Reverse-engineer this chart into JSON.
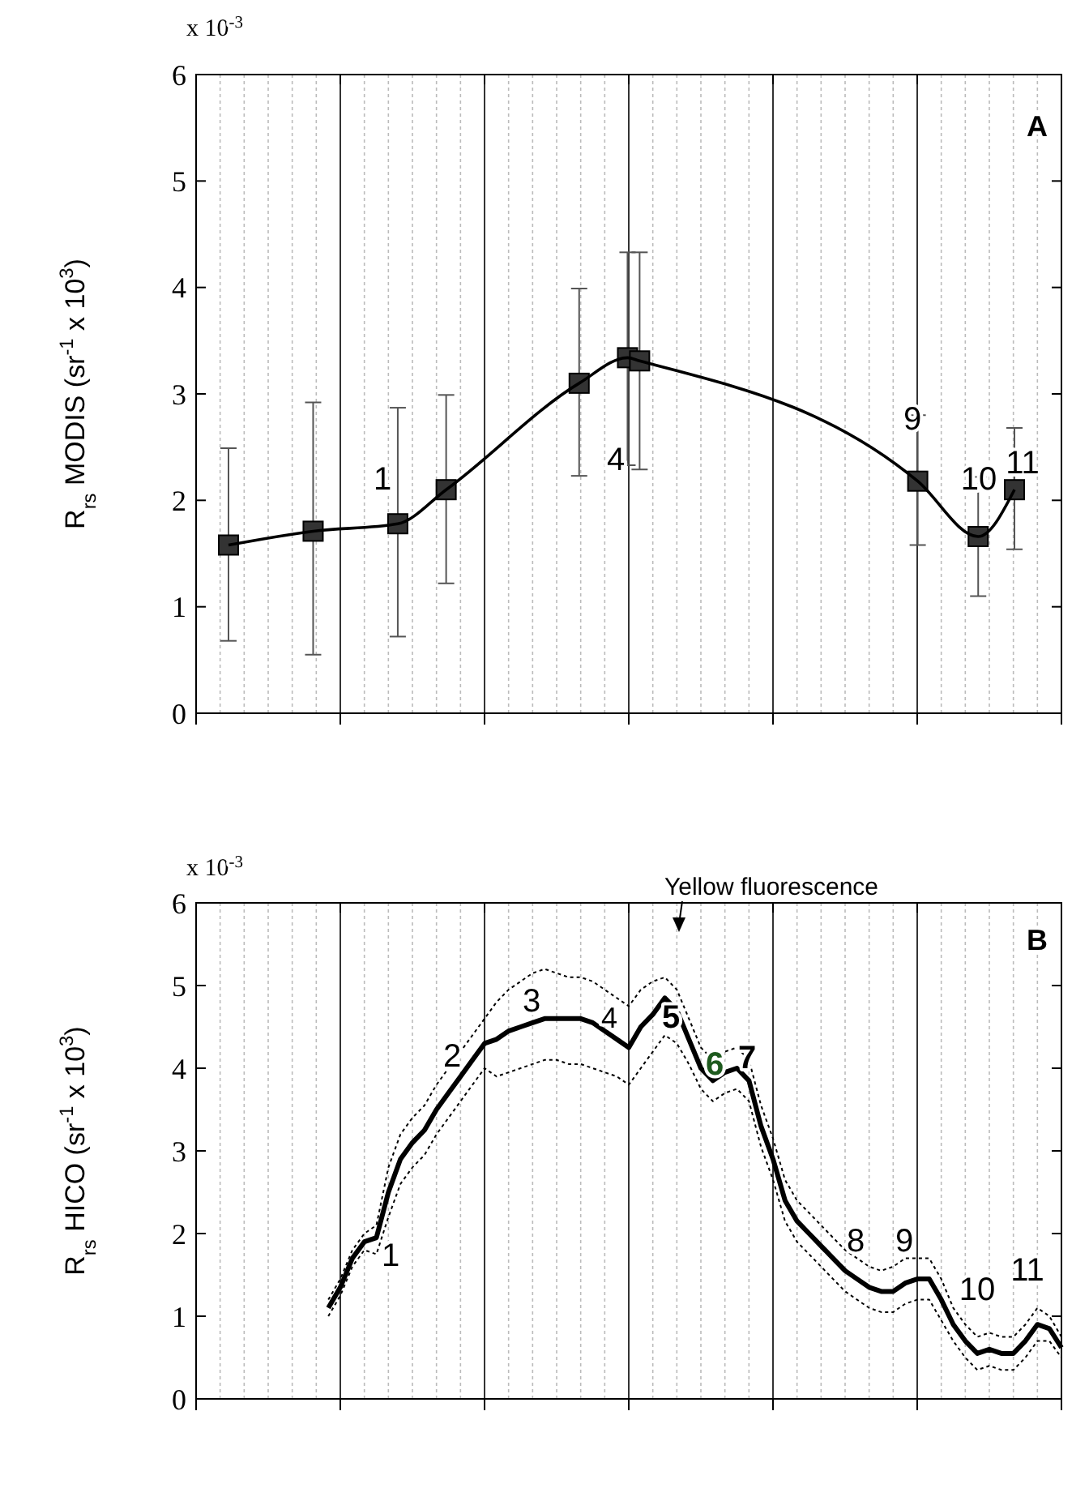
{
  "chart_data": [
    {
      "type": "line",
      "ylabel": "R$_{rs}$ MODIS (sr$^{-1}$ x 10$^{3}$)",
      "categories": [
        null,
        null,
        null,
        null,
        null,
        null,
        null,
        null,
        null,
        null,
        null,
        null,
        null,
        null,
        null,
        null,
        null,
        null,
        null,
        null,
        null,
        null,
        null,
        null,
        null,
        null,
        null,
        null,
        null,
        null,
        null,
        null,
        null,
        null,
        null,
        null,
        null,
        null,
        null,
        null,
        null,
        null,
        null,
        null,
        null,
        null,
        null,
        null,
        null,
        null,
        null,
        null,
        null,
        null,
        null,
        null,
        null,
        null,
        null,
        null,
        null,
        null,
        null,
        null,
        null,
        null,
        null,
        null,
        null,
        null,
        null,
        null,
        null,
        null,
        null,
        null,
        null,
        null,
        null,
        null,
        null,
        null,
        null,
        null,
        null,
        null,
        null,
        null,
        null,
        null,
        null,
        null,
        null,
        null,
        null,
        null,
        null,
        null,
        null,
        null,
        null,
        null,
        null,
        null,
        null,
        null,
        null,
        null,
        null,
        null,
        null,
        null,
        null,
        null,
        null,
        null,
        null,
        null,
        null,
        null,
        null,
        null,
        null,
        null,
        null,
        null,
        null,
        null,
        null,
        null,
        null,
        null,
        null,
        null,
        null,
        null,
        null,
        null,
        null,
        null,
        null,
        null,
        null,
        null,
        null,
        null,
        null,
        null,
        null,
        null,
        null,
        null,
        null,
        null,
        null,
        null,
        null,
        null,
        null,
        null,
        null,
        null,
        null,
        null,
        null,
        null,
        null,
        null,
        null,
        null,
        null,
        null,
        null,
        null,
        null,
        null,
        null,
        null,
        null,
        null,
        null,
        null,
        null,
        null,
        null,
        null,
        null,
        null,
        null,
        null,
        null,
        null,
        null,
        null,
        null,
        null,
        null,
        null,
        null,
        null,
        null,
        null,
        null,
        null,
        null,
        null,
        null,
        null,
        null,
        null,
        null,
        null,
        null,
        null,
        null,
        null,
        null,
        null,
        null,
        null,
        null,
        null,
        null,
        null,
        null,
        null,
        null,
        null,
        null,
        null,
        null,
        null,
        null,
        null,
        null,
        null,
        null,
        null,
        null,
        null,
        null,
        null,
        null,
        null,
        null,
        null,
        null,
        null,
        null,
        null,
        null,
        null,
        null,
        null,
        null,
        null,
        null,
        null,
        null,
        null,
        null
      ],
      "ylim": [
        0,
        6
      ],
      "yticks": [
        0,
        1,
        2,
        3,
        4,
        5,
        6
      ],
      "grid": "x",
      "marker": "square",
      "line_style": "solid",
      "annotations": [
        "x 10$^{-3}$",
        "A",
        "1",
        "4",
        "9",
        "10",
        "11"
      ],
      "series": [
        {
          "color": "#000000",
          "values": [
            1.58,
            null,
            null,
            null,
            null,
            null,
            null,
            null,
            null,
            null,
            null,
            null,
            null,
            null,
            null,
            null,
            null,
            null,
            null,
            null,
            null,
            null,
            null,
            null,
            null,
            null,
            null,
            null,
            1.71,
            null,
            null,
            null,
            null,
            null,
            null,
            null,
            null,
            null,
            null,
            null,
            null,
            null,
            null,
            null,
            null,
            null,
            null,
            null,
            null,
            null,
            null,
            null,
            null,
            null,
            null,
            null,
            1.78,
            null,
            null,
            null,
            null,
            null,
            null,
            null,
            null,
            null,
            null,
            null,
            null,
            null,
            null,
            null,
            2.1,
            null,
            null,
            null,
            null,
            null,
            null,
            null,
            null,
            null,
            null,
            null,
            null,
            null,
            null,
            null,
            null,
            null,
            null,
            null,
            null,
            null,
            null,
            null,
            null,
            null,
            null,
            null,
            null,
            null,
            null,
            null,
            null,
            null,
            null,
            null,
            null,
            null,
            null,
            null,
            null,
            null,
            null,
            null,
            3.1,
            null,
            null,
            null,
            null,
            null,
            null,
            null,
            null,
            null,
            null,
            null,
            null,
            null,
            null,
            null,
            3.34,
            null,
            null,
            null,
            3.31,
            null,
            null,
            null,
            null,
            null,
            null,
            null,
            null,
            null,
            null,
            null,
            null,
            null,
            null,
            null,
            null,
            null,
            null,
            null,
            null,
            null,
            null,
            null,
            null,
            null,
            null,
            null,
            null,
            null,
            null,
            null,
            null,
            null,
            null,
            null,
            null,
            null,
            null,
            null,
            null,
            null,
            null,
            null,
            null,
            null,
            null,
            null,
            null,
            null,
            null,
            null,
            null,
            null,
            null,
            null,
            null,
            null,
            null,
            null,
            null,
            null,
            null,
            null,
            null,
            null,
            null,
            null,
            null,
            null,
            null,
            null,
            null,
            null,
            null,
            null,
            null,
            null,
            null,
            null,
            null,
            null,
            null,
            null,
            null,
            null,
            null,
            null,
            null,
            null,
            null,
            null,
            2.18,
            null,
            null,
            null,
            null,
            null,
            null,
            null,
            null,
            null,
            null,
            null,
            null,
            null,
            null,
            null,
            null,
            null,
            null,
            null,
            1.66,
            null,
            null,
            null,
            null,
            null,
            null,
            null,
            null,
            null,
            null,
            null,
            2.1
          ],
          "errors": [
            [
              0.68,
              2.49
            ],
            null,
            null,
            null,
            null,
            null,
            null,
            null,
            null,
            null,
            null,
            null,
            null,
            null,
            null,
            null,
            null,
            null,
            null,
            null,
            null,
            null,
            null,
            null,
            null,
            null,
            null,
            null,
            [
              0.55,
              2.92
            ],
            null,
            null,
            null,
            null,
            null,
            null,
            null,
            null,
            null,
            null,
            null,
            null,
            null,
            null,
            null,
            null,
            null,
            null,
            null,
            null,
            null,
            null,
            null,
            null,
            null,
            null,
            null,
            [
              0.72,
              2.87
            ],
            null,
            null,
            null,
            null,
            null,
            null,
            null,
            null,
            null,
            null,
            null,
            null,
            null,
            null,
            null,
            [
              1.22,
              2.99
            ],
            null,
            null,
            null,
            null,
            null,
            null,
            null,
            null,
            null,
            null,
            null,
            null,
            null,
            null,
            null,
            null,
            null,
            null,
            null,
            null,
            null,
            null,
            null,
            null,
            null,
            null,
            null,
            null,
            null,
            null,
            null,
            null,
            null,
            null,
            null,
            null,
            null,
            null,
            null,
            null,
            null,
            null,
            null,
            [
              2.23,
              3.99
            ],
            null,
            null,
            null,
            null,
            null,
            null,
            null,
            null,
            null,
            null,
            null,
            null,
            null,
            null,
            null,
            [
              2.33,
              4.33
            ],
            null,
            null,
            null,
            [
              2.29,
              4.33
            ],
            null,
            null,
            null,
            null,
            null,
            null,
            null,
            null,
            null,
            null,
            null,
            null,
            null,
            null,
            null,
            null,
            null,
            null,
            null,
            null,
            null,
            null,
            null,
            null,
            null,
            null,
            null,
            null,
            null,
            null,
            null,
            null,
            null,
            null,
            null,
            null,
            null,
            null,
            null,
            null,
            null,
            null,
            null,
            null,
            null,
            null,
            null,
            null,
            null,
            null,
            null,
            null,
            null,
            null,
            null,
            null,
            null,
            null,
            null,
            null,
            null,
            null,
            null,
            null,
            null,
            null,
            null,
            null,
            null,
            null,
            null,
            null,
            null,
            null,
            null,
            null,
            null,
            null,
            null,
            null,
            null,
            null,
            null,
            null,
            null,
            null,
            null,
            null,
            null,
            null,
            null,
            [
              1.58,
              2.8
            ],
            null,
            null,
            null,
            null,
            null,
            null,
            null,
            null,
            null,
            null,
            null,
            null,
            null,
            null,
            null,
            null,
            null,
            null,
            null,
            [
              1.1,
              2.22
            ],
            null,
            null,
            null,
            null,
            null,
            null,
            null,
            null,
            null,
            null,
            null,
            [
              1.54,
              2.68
            ]
          ]
        }
      ]
    },
    {
      "type": "line",
      "ylabel": "R$_{rs}$ HICO (sr$^{-1}$ x 10$^{3}$)",
      "categories": [
        null,
        null,
        null,
        null,
        null,
        null,
        null,
        null,
        null,
        null,
        null,
        null,
        null,
        null,
        null,
        null,
        null,
        null,
        null,
        null,
        null,
        null,
        null,
        null,
        null,
        null,
        null,
        null,
        null,
        null,
        null,
        null,
        null,
        null,
        null,
        null,
        null,
        null,
        null,
        null,
        null,
        null,
        null,
        null,
        null,
        null,
        null,
        null,
        null,
        null,
        null,
        null,
        null,
        null,
        null,
        null,
        null,
        null,
        null,
        null,
        null,
        null
      ],
      "ylim": [
        0,
        6
      ],
      "yticks": [
        0,
        1,
        2,
        3,
        4,
        5,
        6
      ],
      "grid": "x",
      "marker": "none",
      "line_style": "solid",
      "annotations": [
        "x 10$^{-3}$",
        "B",
        "Yellow fluorescence",
        "1",
        "2",
        "3",
        "4",
        "5",
        "6",
        "7",
        "8",
        "9",
        "10",
        "11"
      ],
      "series": [
        {
          "color": "#000000",
          "values": [
            1.1,
            1.35,
            1.7,
            1.9,
            1.95,
            2.5,
            2.9,
            3.1,
            3.25,
            3.5,
            3.7,
            3.9,
            4.1,
            4.3,
            4.35,
            4.45,
            4.5,
            4.55,
            4.6,
            4.6,
            4.6,
            4.6,
            4.55,
            4.45,
            4.35,
            4.25,
            4.5,
            4.65,
            4.85,
            4.7,
            4.35,
            4.0,
            3.85,
            3.95,
            4.0,
            3.85,
            3.3,
            2.9,
            2.4,
            2.15,
            2.0,
            1.85,
            1.7,
            1.55,
            1.45,
            1.35,
            1.3,
            1.3,
            1.4,
            1.45,
            1.45,
            1.2,
            0.9,
            0.7,
            0.55,
            0.6,
            0.55,
            0.55,
            0.7,
            0.9,
            0.85,
            0.62
          ]
        },
        {
          "color": "#000000",
          "line_style": "dotted",
          "values": [
            1.2,
            1.45,
            1.8,
            2.0,
            2.1,
            2.8,
            3.2,
            3.4,
            3.55,
            3.8,
            4.0,
            4.2,
            4.4,
            4.6,
            4.8,
            4.95,
            5.05,
            5.15,
            5.2,
            5.15,
            5.1,
            5.1,
            5.05,
            4.95,
            4.85,
            4.75,
            4.95,
            5.05,
            5.1,
            4.95,
            4.6,
            4.25,
            4.1,
            4.2,
            4.25,
            4.1,
            3.55,
            3.15,
            2.65,
            2.4,
            2.25,
            2.1,
            1.95,
            1.8,
            1.7,
            1.6,
            1.55,
            1.6,
            1.7,
            1.7,
            1.7,
            1.45,
            1.1,
            0.9,
            0.75,
            0.8,
            0.75,
            0.75,
            0.9,
            1.1,
            1.0,
            0.75
          ]
        },
        {
          "color": "#000000",
          "line_style": "dotted",
          "values": [
            1.0,
            1.25,
            1.6,
            1.8,
            1.75,
            2.2,
            2.6,
            2.8,
            2.95,
            3.2,
            3.4,
            3.6,
            3.8,
            4.0,
            3.9,
            3.95,
            4.0,
            4.05,
            4.1,
            4.1,
            4.05,
            4.05,
            4.0,
            3.95,
            3.9,
            3.8,
            4.0,
            4.2,
            4.4,
            4.3,
            4.05,
            3.75,
            3.6,
            3.7,
            3.75,
            3.6,
            3.05,
            2.65,
            2.15,
            1.9,
            1.75,
            1.6,
            1.45,
            1.3,
            1.2,
            1.1,
            1.05,
            1.05,
            1.15,
            1.2,
            1.2,
            0.95,
            0.7,
            0.5,
            0.35,
            0.4,
            0.35,
            0.35,
            0.5,
            0.7,
            0.7,
            0.5
          ]
        }
      ]
    }
  ]
}
